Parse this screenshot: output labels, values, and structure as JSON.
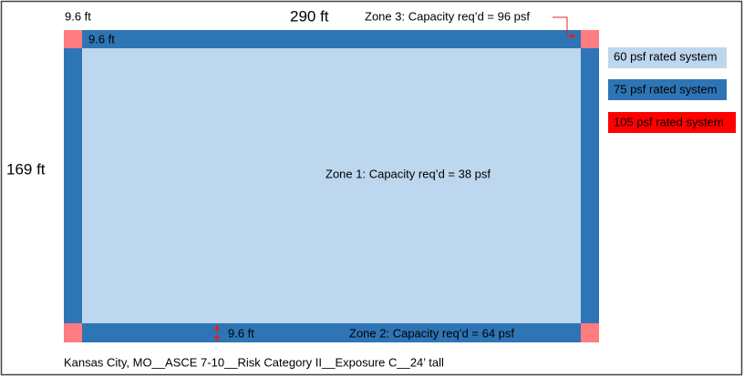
{
  "dimensions": {
    "edge_top_left": "9.6 ft",
    "length": "290 ft",
    "edge_top_inner": "9.6 ft",
    "width": "169 ft",
    "edge_bottom": "9.6 ft"
  },
  "zones": [
    {
      "label": "Zone 1: Capacity req’d = 38 psf"
    },
    {
      "label": "Zone 2: Capacity req’d = 64 psf"
    },
    {
      "label": "Zone 3: Capacity req’d = 96 psf"
    }
  ],
  "legend": [
    "60 psf rated system",
    "75 psf rated system",
    "105 psf rated system"
  ],
  "footer": "Kansas City, MO__ASCE 7-10__Risk Category II__Exposure C__24’ tall"
}
